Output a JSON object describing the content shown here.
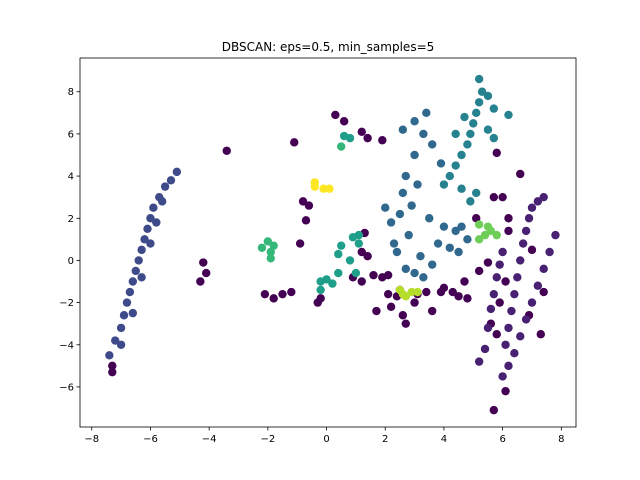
{
  "chart_data": {
    "type": "scatter",
    "title": "DBSCAN: eps=0.5, min_samples=5",
    "xlabel": "",
    "ylabel": "",
    "xlim": [
      -8.4,
      8.5
    ],
    "ylim": [
      -7.9,
      9.6
    ],
    "xticks": [
      -8,
      -6,
      -4,
      -2,
      0,
      2,
      4,
      6,
      8
    ],
    "yticks": [
      -6,
      -4,
      -2,
      0,
      2,
      4,
      6,
      8
    ],
    "grid": false,
    "colormap": "viridis",
    "clusters": [
      {
        "label": -1,
        "role": "noise",
        "color": "#440154",
        "points": [
          [
            -7.3,
            -5.0
          ],
          [
            -7.3,
            -5.3
          ],
          [
            -4.3,
            -1.0
          ],
          [
            -4.1,
            -0.6
          ],
          [
            -4.2,
            -0.1
          ],
          [
            -3.4,
            5.2
          ],
          [
            -2.1,
            -1.6
          ],
          [
            -1.8,
            -1.8
          ],
          [
            -1.5,
            -1.6
          ],
          [
            -1.2,
            -1.5
          ],
          [
            -1.1,
            5.6
          ],
          [
            -0.9,
            0.8
          ],
          [
            -0.8,
            2.8
          ],
          [
            -0.7,
            1.9
          ],
          [
            -0.6,
            2.6
          ],
          [
            -0.3,
            -2.0
          ],
          [
            -0.2,
            -1.8
          ],
          [
            0.3,
            6.9
          ],
          [
            0.6,
            6.6
          ],
          [
            0.9,
            -0.8
          ],
          [
            1.2,
            -1.0
          ],
          [
            1.2,
            6.1
          ],
          [
            1.4,
            5.8
          ],
          [
            1.3,
            1.3
          ],
          [
            1.2,
            0.4
          ],
          [
            1.4,
            0.2
          ],
          [
            1.6,
            -0.7
          ],
          [
            1.7,
            -2.4
          ],
          [
            1.9,
            -0.8
          ],
          [
            1.9,
            5.7
          ],
          [
            2.1,
            -0.7
          ],
          [
            2.1,
            -1.6
          ],
          [
            2.2,
            -2.2
          ],
          [
            2.4,
            -1.7
          ],
          [
            2.6,
            -2.6
          ],
          [
            2.7,
            -3.0
          ],
          [
            2.5,
            -1.4
          ],
          [
            3.0,
            -2.0
          ],
          [
            3.1,
            -1.6
          ],
          [
            3.4,
            -1.5
          ],
          [
            3.6,
            -2.4
          ],
          [
            3.9,
            -1.5
          ],
          [
            4.0,
            -1.3
          ],
          [
            4.3,
            -1.5
          ],
          [
            4.5,
            -1.7
          ],
          [
            4.7,
            -1.0
          ],
          [
            4.8,
            -1.8
          ],
          [
            5.1,
            2.0
          ],
          [
            5.2,
            -0.5
          ],
          [
            5.5,
            -0.1
          ],
          [
            5.7,
            3.0
          ],
          [
            5.8,
            5.1
          ],
          [
            6.0,
            3.0
          ],
          [
            6.1,
            -1.0
          ],
          [
            5.9,
            -2.0
          ],
          [
            5.8,
            -3.5
          ],
          [
            5.6,
            -3.0
          ],
          [
            5.7,
            -7.1
          ],
          [
            6.1,
            -6.2
          ],
          [
            6.2,
            2.0
          ],
          [
            6.2,
            1.4
          ],
          [
            6.6,
            4.1
          ],
          [
            7.3,
            -3.5
          ],
          [
            7.0,
            0.5
          ],
          [
            7.4,
            -1.5
          ],
          [
            6.9,
            -2.6
          ]
        ]
      },
      {
        "label": 0,
        "color": "#482173",
        "points_note": "dense elongated cluster",
        "points": [
          [
            5.2,
            -4.8
          ],
          [
            5.4,
            -4.2
          ],
          [
            5.5,
            -3.2
          ],
          [
            5.6,
            -2.3
          ],
          [
            5.7,
            -1.6
          ],
          [
            5.8,
            -0.8
          ],
          [
            5.9,
            -0.2
          ],
          [
            6.0,
            0.4
          ],
          [
            6.1,
            -4.0
          ],
          [
            6.2,
            -3.2
          ],
          [
            6.3,
            -2.4
          ],
          [
            6.4,
            -1.6
          ],
          [
            6.5,
            -0.8
          ],
          [
            6.6,
            0.0
          ],
          [
            6.7,
            0.8
          ],
          [
            6.8,
            1.4
          ],
          [
            6.9,
            2.0
          ],
          [
            7.0,
            2.5
          ],
          [
            7.2,
            2.8
          ],
          [
            7.4,
            3.0
          ],
          [
            6.0,
            -5.5
          ],
          [
            6.2,
            -5.0
          ],
          [
            6.4,
            -4.4
          ],
          [
            6.6,
            -3.6
          ],
          [
            6.8,
            -2.8
          ],
          [
            7.0,
            -2.0
          ],
          [
            7.2,
            -1.2
          ],
          [
            7.4,
            -0.4
          ],
          [
            7.6,
            0.4
          ],
          [
            7.8,
            1.2
          ]
        ]
      },
      {
        "label": 1,
        "color": "#3e4a89",
        "points_note": "dense elongated cluster",
        "points": [
          [
            -7.4,
            -4.5
          ],
          [
            -7.2,
            -3.8
          ],
          [
            -7.0,
            -3.2
          ],
          [
            -6.9,
            -2.6
          ],
          [
            -6.8,
            -2.0
          ],
          [
            -6.7,
            -1.5
          ],
          [
            -6.6,
            -1.0
          ],
          [
            -6.5,
            -0.5
          ],
          [
            -6.4,
            0.0
          ],
          [
            -6.3,
            0.5
          ],
          [
            -6.2,
            1.0
          ],
          [
            -6.1,
            1.5
          ],
          [
            -6.0,
            2.0
          ],
          [
            -5.9,
            2.5
          ],
          [
            -5.7,
            3.0
          ],
          [
            -5.5,
            3.5
          ],
          [
            -5.3,
            3.8
          ],
          [
            -5.1,
            4.2
          ],
          [
            -7.0,
            -4.0
          ],
          [
            -6.6,
            -2.5
          ],
          [
            -6.3,
            -0.8
          ],
          [
            -6.0,
            0.8
          ],
          [
            -5.8,
            1.8
          ],
          [
            -5.6,
            2.8
          ]
        ]
      },
      {
        "label": 2,
        "color": "#31688e",
        "points": [
          [
            2.0,
            2.5
          ],
          [
            2.2,
            1.8
          ],
          [
            2.3,
            0.8
          ],
          [
            2.5,
            2.2
          ],
          [
            2.6,
            3.2
          ],
          [
            2.7,
            4.0
          ],
          [
            2.8,
            1.2
          ],
          [
            2.9,
            2.6
          ],
          [
            3.0,
            5.0
          ],
          [
            3.1,
            3.6
          ],
          [
            3.2,
            0.2
          ],
          [
            3.3,
            6.0
          ],
          [
            3.4,
            7.0
          ],
          [
            3.5,
            2.0
          ],
          [
            3.6,
            5.5
          ],
          [
            3.8,
            0.8
          ],
          [
            3.9,
            4.6
          ],
          [
            4.0,
            1.6
          ],
          [
            4.2,
            0.6
          ],
          [
            4.4,
            1.4
          ],
          [
            4.5,
            0.4
          ],
          [
            4.6,
            1.6
          ],
          [
            4.8,
            1.0
          ],
          [
            2.4,
            0.4
          ],
          [
            2.7,
            -0.4
          ],
          [
            3.0,
            -0.6
          ],
          [
            3.3,
            -0.8
          ],
          [
            3.6,
            -0.2
          ],
          [
            2.6,
            6.2
          ],
          [
            3.0,
            6.6
          ]
        ]
      },
      {
        "label": 3,
        "color": "#26828e",
        "points": [
          [
            4.0,
            3.6
          ],
          [
            4.2,
            4.0
          ],
          [
            4.4,
            4.5
          ],
          [
            4.6,
            5.0
          ],
          [
            4.8,
            5.5
          ],
          [
            4.9,
            6.0
          ],
          [
            5.0,
            6.5
          ],
          [
            5.1,
            7.0
          ],
          [
            5.2,
            7.5
          ],
          [
            5.3,
            8.0
          ],
          [
            5.2,
            8.6
          ],
          [
            5.5,
            7.8
          ],
          [
            5.7,
            7.2
          ],
          [
            5.5,
            6.2
          ],
          [
            5.7,
            5.8
          ],
          [
            6.2,
            6.9
          ],
          [
            4.7,
            6.8
          ],
          [
            4.4,
            6.0
          ],
          [
            4.6,
            3.4
          ],
          [
            5.1,
            3.2
          ],
          [
            4.9,
            2.8
          ]
        ]
      },
      {
        "label": 4,
        "color": "#1f9e89",
        "points": [
          [
            -0.2,
            -1.4
          ],
          [
            -0.2,
            -1.0
          ],
          [
            0.0,
            -0.9
          ],
          [
            0.2,
            -1.1
          ],
          [
            0.4,
            -0.6
          ],
          [
            0.4,
            0.3
          ],
          [
            0.5,
            0.7
          ],
          [
            0.8,
            0.0
          ],
          [
            1.0,
            -0.6
          ],
          [
            0.9,
            1.1
          ],
          [
            0.6,
            5.9
          ],
          [
            0.8,
            5.8
          ],
          [
            1.1,
            0.8
          ],
          [
            1.1,
            1.2
          ]
        ]
      },
      {
        "label": 5,
        "color": "#35b779",
        "points": [
          [
            -2.2,
            0.6
          ],
          [
            -2.0,
            0.9
          ],
          [
            -1.9,
            0.4
          ],
          [
            -1.8,
            0.7
          ],
          [
            -1.9,
            0.1
          ],
          [
            0.5,
            5.4
          ]
        ]
      },
      {
        "label": 6,
        "color": "#6ece58",
        "points": [
          [
            5.2,
            1.0
          ],
          [
            5.4,
            1.2
          ],
          [
            5.6,
            1.4
          ],
          [
            5.8,
            1.2
          ],
          [
            5.2,
            1.7
          ],
          [
            5.5,
            1.6
          ]
        ]
      },
      {
        "label": 7,
        "color": "#b5de2b",
        "points": [
          [
            2.5,
            -1.4
          ],
          [
            2.6,
            -1.6
          ],
          [
            2.7,
            -1.7
          ],
          [
            2.9,
            -1.5
          ],
          [
            3.1,
            -1.5
          ]
        ]
      },
      {
        "label": 8,
        "color": "#fde725",
        "points": [
          [
            -0.4,
            3.7
          ],
          [
            -0.4,
            3.5
          ],
          [
            -0.1,
            3.4
          ],
          [
            0.1,
            3.4
          ]
        ]
      }
    ]
  }
}
